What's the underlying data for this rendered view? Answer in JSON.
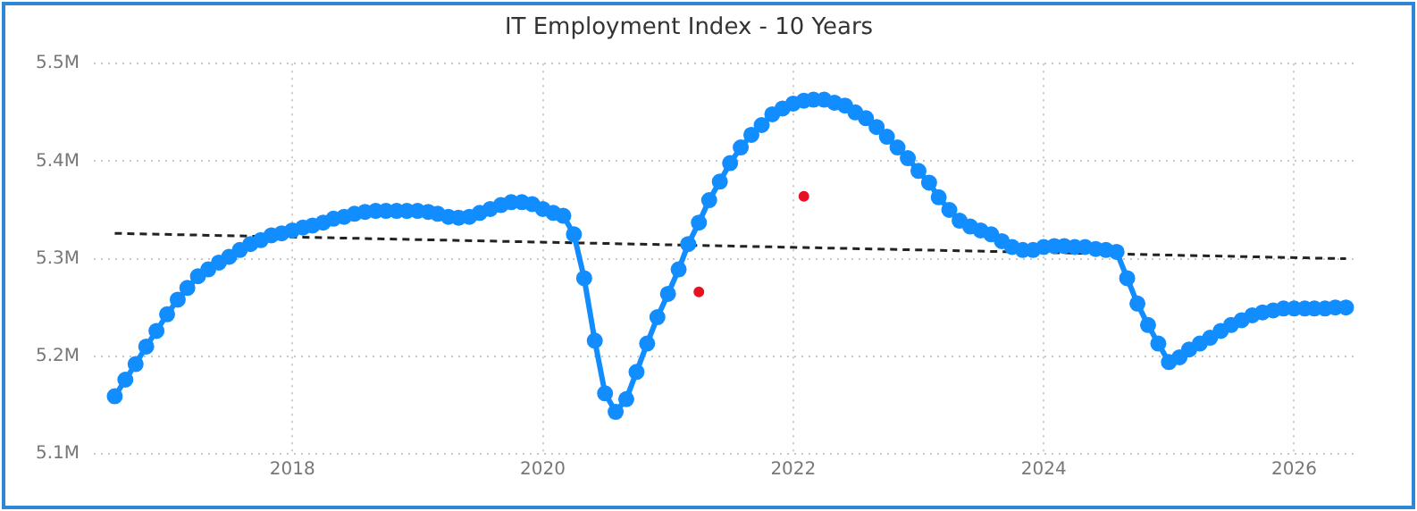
{
  "chart_data": {
    "type": "line",
    "title": "IT Employment Index - 10 Years",
    "x": [
      "2016-08",
      "2016-09",
      "2016-10",
      "2016-11",
      "2016-12",
      "2017-01",
      "2017-02",
      "2017-03",
      "2017-04",
      "2017-05",
      "2017-06",
      "2017-07",
      "2017-08",
      "2017-09",
      "2017-10",
      "2017-11",
      "2017-12",
      "2018-01",
      "2018-02",
      "2018-03",
      "2018-04",
      "2018-05",
      "2018-06",
      "2018-07",
      "2018-08",
      "2018-09",
      "2018-10",
      "2018-11",
      "2018-12",
      "2019-01",
      "2019-02",
      "2019-03",
      "2019-04",
      "2019-05",
      "2019-06",
      "2019-07",
      "2019-08",
      "2019-09",
      "2019-10",
      "2019-11",
      "2019-12",
      "2020-01",
      "2020-02",
      "2020-03",
      "2020-04",
      "2020-05",
      "2020-06",
      "2020-07",
      "2020-08",
      "2020-09",
      "2020-10",
      "2020-11",
      "2020-12",
      "2021-01",
      "2021-02",
      "2021-03",
      "2021-04",
      "2021-05",
      "2021-06",
      "2021-07",
      "2021-08",
      "2021-09",
      "2021-10",
      "2021-11",
      "2021-12",
      "2022-01",
      "2022-02",
      "2022-03",
      "2022-04",
      "2022-05",
      "2022-06",
      "2022-07",
      "2022-08",
      "2022-09",
      "2022-10",
      "2022-11",
      "2022-12",
      "2023-01",
      "2023-02",
      "2023-03",
      "2023-04",
      "2023-05",
      "2023-06",
      "2023-07",
      "2023-08",
      "2023-09",
      "2023-10",
      "2023-11",
      "2023-12",
      "2024-01",
      "2024-02",
      "2024-03",
      "2024-04",
      "2024-05",
      "2024-06",
      "2024-07",
      "2024-08",
      "2024-09",
      "2024-10",
      "2024-11",
      "2024-12",
      "2025-01",
      "2025-02",
      "2025-03",
      "2025-04",
      "2025-05",
      "2025-06",
      "2025-07",
      "2025-08",
      "2025-09",
      "2025-10",
      "2025-11",
      "2025-12",
      "2026-01",
      "2026-02",
      "2026-03",
      "2026-04",
      "2026-05",
      "2026-06"
    ],
    "series": [
      {
        "color": "#118dff",
        "marker": "circle",
        "line_style": "solid",
        "values": [
          5159000,
          5176000,
          5192000,
          5210000,
          5226000,
          5243000,
          5258000,
          5270000,
          5282000,
          5289000,
          5296000,
          5302000,
          5309000,
          5315000,
          5319000,
          5324000,
          5326000,
          5329000,
          5332000,
          5334000,
          5337000,
          5341000,
          5343000,
          5346000,
          5348000,
          5349000,
          5349000,
          5349000,
          5349000,
          5349000,
          5348000,
          5346000,
          5343000,
          5342000,
          5343000,
          5347000,
          5351000,
          5355000,
          5358000,
          5358000,
          5356000,
          5351000,
          5347000,
          5344000,
          5325000,
          5280000,
          5216000,
          5162000,
          5143000,
          5156000,
          5184000,
          5213000,
          5240000,
          5264000,
          5289000,
          5315000,
          5337000,
          5360000,
          5379000,
          5398000,
          5414000,
          5427000,
          5437000,
          5448000,
          5454000,
          5459000,
          5462000,
          5463000,
          5463000,
          5460000,
          5457000,
          5450000,
          5444000,
          5435000,
          5425000,
          5414000,
          5403000,
          5390000,
          5378000,
          5363000,
          5350000,
          5339000,
          5333000,
          5329000,
          5325000,
          5318000,
          5312000,
          5309000,
          5309000,
          5312000,
          5313000,
          5313000,
          5312000,
          5312000,
          5310000,
          5309000,
          5307000,
          5280000,
          5254000,
          5232000,
          5213000,
          5194000,
          5199000,
          5207000,
          5213000,
          5219000,
          5226000,
          5232000,
          5237000,
          5242000,
          5245000,
          5247000,
          5249000,
          5249000,
          5249000,
          5249000,
          5249000,
          5250000,
          5250000
        ]
      },
      {
        "type": "line",
        "color": "#222222",
        "marker": "none",
        "line_style": "dashed",
        "x": [
          "2016-08",
          "2026-06"
        ],
        "values": [
          5326000,
          5300000
        ]
      },
      {
        "type": "scatter",
        "color": "#e81123",
        "marker": "circle",
        "x": [
          "2021-04",
          "2022-02"
        ],
        "values": [
          5266000,
          5364000
        ]
      }
    ],
    "xlim": [
      "2016-06",
      "2026-07"
    ],
    "xticks": [
      "2018",
      "2020",
      "2022",
      "2024",
      "2026"
    ],
    "ylim": [
      5100000,
      5500000
    ],
    "yticks": [
      {
        "value": 5100000,
        "label": "5.1M"
      },
      {
        "value": 5200000,
        "label": "5.2M"
      },
      {
        "value": 5300000,
        "label": "5.3M"
      },
      {
        "value": 5400000,
        "label": "5.4M"
      },
      {
        "value": 5500000,
        "label": "5.5M"
      }
    ],
    "grid": true,
    "legend": false
  }
}
